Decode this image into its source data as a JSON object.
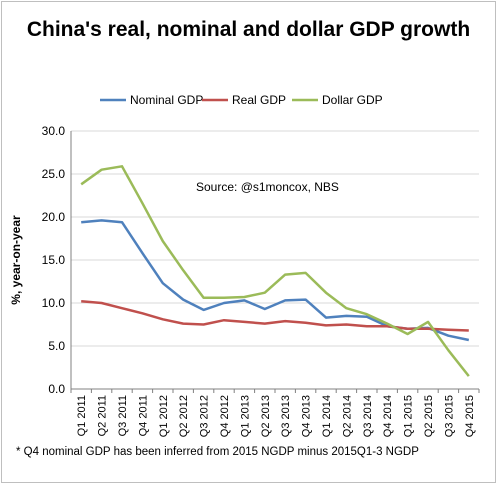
{
  "chart_data": {
    "type": "line",
    "title": "China's real, nominal and dollar GDP growth",
    "ylabel": "%, year-on-year",
    "xlabel": "",
    "ylim": [
      0,
      30
    ],
    "yticks": [
      "0.0",
      "5.0",
      "10.0",
      "15.0",
      "20.0",
      "25.0",
      "30.0"
    ],
    "grid": "horizontal",
    "legend": "top",
    "annotation": "Source: @s1moncox, NBS",
    "categories": [
      "Q1 2011",
      "Q2 2011",
      "Q3 2011",
      "Q4 2011",
      "Q1 2012",
      "Q2 2012",
      "Q3 2012",
      "Q4 2012",
      "Q1 2013",
      "Q2 2013",
      "Q3 2013",
      "Q4 2013",
      "Q1 2014",
      "Q2 2014",
      "Q3 2014",
      "Q4 2014",
      "Q1 2015",
      "Q2 2015",
      "Q3 2015",
      "Q4 2015"
    ],
    "series": [
      {
        "name": "Nominal GDP",
        "color": "#4f81bd",
        "values": [
          19.4,
          19.6,
          19.4,
          15.8,
          12.3,
          10.4,
          9.2,
          10.0,
          10.3,
          9.3,
          10.3,
          10.4,
          8.3,
          8.5,
          8.4,
          7.3,
          7.0,
          7.1,
          6.2,
          5.7
        ]
      },
      {
        "name": "Real GDP",
        "color": "#c0504d",
        "values": [
          10.2,
          10.0,
          9.4,
          8.8,
          8.1,
          7.6,
          7.5,
          8.0,
          7.8,
          7.6,
          7.9,
          7.7,
          7.4,
          7.5,
          7.3,
          7.3,
          7.0,
          7.0,
          6.9,
          6.8
        ]
      },
      {
        "name": "Dollar GDP",
        "color": "#9bbb59",
        "values": [
          23.8,
          25.5,
          25.9,
          21.6,
          17.2,
          13.8,
          10.6,
          10.6,
          10.7,
          11.2,
          13.3,
          13.5,
          11.2,
          9.4,
          8.7,
          7.6,
          6.4,
          7.8,
          4.5,
          1.5
        ]
      }
    ]
  },
  "footnote": "* Q4 nominal GDP has been inferred from 2015 NGDP minus 2015Q1-3 NGDP"
}
